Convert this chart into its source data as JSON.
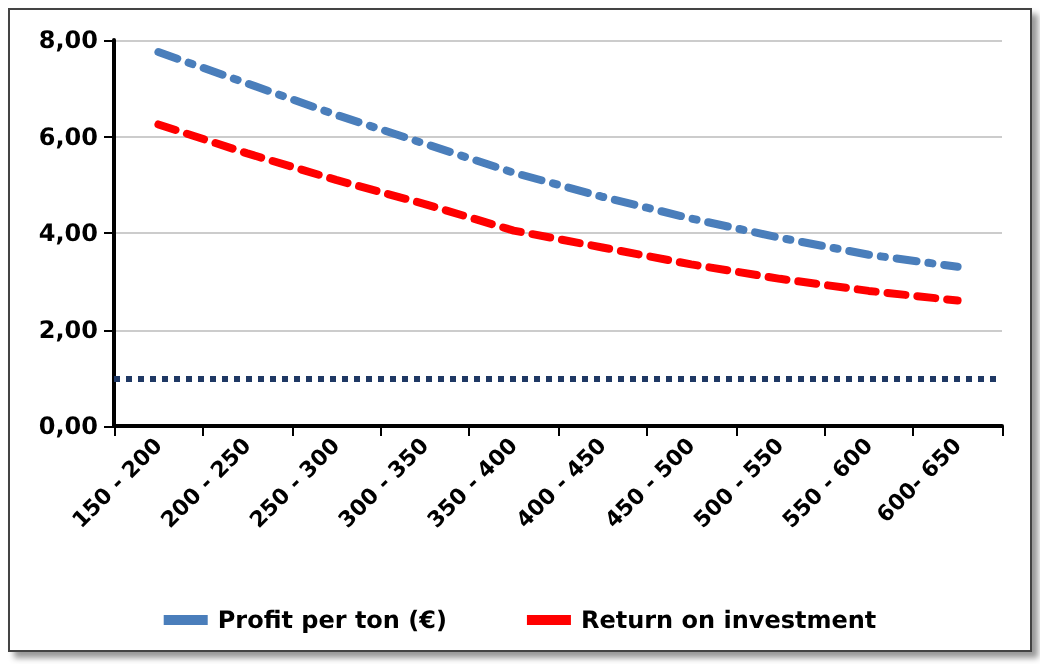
{
  "chart_data": {
    "type": "line",
    "categories": [
      "150 - 200",
      "200 - 250",
      "250 - 300",
      "300 - 350",
      "350 - 400",
      "400 - 450",
      "450 - 500",
      "500 - 550",
      "550 - 600",
      "600- 650"
    ],
    "series": [
      {
        "name": "Profit per ton (€)",
        "color": "#4a7ebb",
        "line_style": "dashdot",
        "values": [
          7.75,
          7.1,
          6.45,
          5.85,
          5.25,
          4.75,
          4.3,
          3.9,
          3.55,
          3.3
        ]
      },
      {
        "name": "Return on investment",
        "color": "#ff0000",
        "line_style": "dashed",
        "values": [
          6.25,
          5.65,
          5.1,
          4.6,
          4.05,
          3.7,
          3.35,
          3.05,
          2.8,
          2.6
        ]
      }
    ],
    "ylim": [
      0,
      8
    ],
    "yticks": [
      {
        "value": 0,
        "label": "0,00"
      },
      {
        "value": 2,
        "label": "2,00"
      },
      {
        "value": 4,
        "label": "4,00"
      },
      {
        "value": 6,
        "label": "6,00"
      },
      {
        "value": 8,
        "label": "8,00"
      }
    ],
    "ref_lines": [
      {
        "axis": "y",
        "value": 1,
        "color": "#1f3864",
        "line_style": "dotted"
      }
    ],
    "grid": "y",
    "legend": "bottom",
    "marker": "none"
  }
}
